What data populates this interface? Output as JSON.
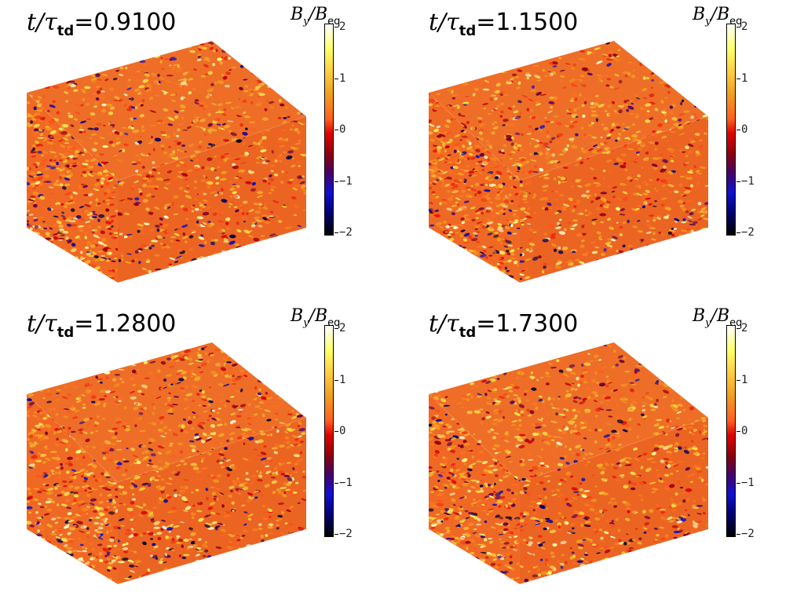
{
  "panels": [
    {
      "time_var": "t/τ",
      "time_sub": "td",
      "time_value": "0.9100",
      "cube_seed": 11
    },
    {
      "time_var": "t/τ",
      "time_sub": "td",
      "time_value": "1.1500",
      "cube_seed": 23
    },
    {
      "time_var": "t/τ",
      "time_sub": "td",
      "time_value": "1.2800",
      "cube_seed": 37
    },
    {
      "time_var": "t/τ",
      "time_sub": "td",
      "time_value": "1.7300",
      "cube_seed": 53
    }
  ],
  "colorbar": {
    "label_main": "B",
    "label_sub_y": "y",
    "label_slash": "/B",
    "label_sub_eq": "eq",
    "ticks": [
      "2",
      "1",
      "0",
      "−1",
      "−2"
    ],
    "range": [
      -2,
      2
    ],
    "colors": [
      "#ffffff",
      "#ffff66",
      "#ffd040",
      "#f0a020",
      "#ff6020",
      "#e00000",
      "#8a0010",
      "#4a0060",
      "#1010d0",
      "#000070",
      "#000000"
    ]
  }
}
